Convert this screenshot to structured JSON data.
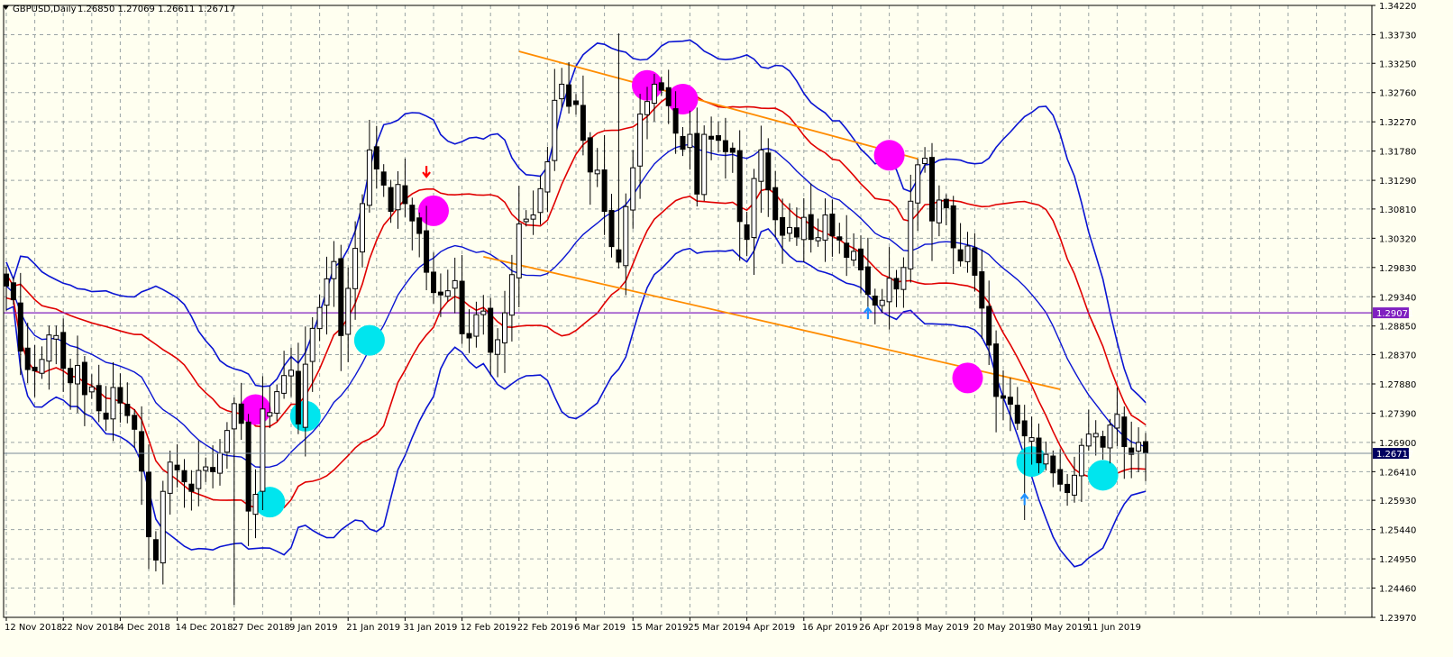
{
  "header": {
    "title": "GBPUSD,Daily",
    "ohlc": "1.26850 1.27069 1.26611 1.26717"
  },
  "price_labels": {
    "horizontal_line": "1.29071",
    "current_price": "1.26717"
  },
  "colors": {
    "background": "#fffff0",
    "grid": "#9aa4a4",
    "frame": "#000000",
    "bull_candle": "#ffffff",
    "bear_candle": "#000000",
    "bollinger_blue": "#0a14d2",
    "bollinger_red": "#e00000",
    "trendline": "#ff8c00",
    "horizontal_line": "#8020c0",
    "current_price_label": "#000060",
    "marker_magenta": "#ff00ff",
    "marker_cyan": "#00e5ee",
    "arrow_red": "#ff0000",
    "arrow_blue": "#1e90ff"
  },
  "chart_data": {
    "type": "candlestick",
    "symbol": "GBPUSD",
    "timeframe": "Daily",
    "ylim": [
      1.2397,
      1.3422
    ],
    "y_ticks": [
      "1.34220",
      "1.33730",
      "1.33250",
      "1.32760",
      "1.32270",
      "1.31780",
      "1.31290",
      "1.30810",
      "1.30320",
      "1.29830",
      "1.29340",
      "1.28850",
      "1.28370",
      "1.27880",
      "1.27390",
      "1.26900",
      "1.26410",
      "1.25930",
      "1.25440",
      "1.24950",
      "1.24460",
      "1.23970"
    ],
    "x_ticks": [
      "12 Nov 2018",
      "22 Nov 2018",
      "4 Dec 2018",
      "14 Dec 2018",
      "27 Dec 2018",
      "9 Jan 2019",
      "21 Jan 2019",
      "31 Jan 2019",
      "12 Feb 2019",
      "22 Feb 2019",
      "6 Mar 2019",
      "15 Mar 2019",
      "25 Mar 2019",
      "4 Apr 2019",
      "16 Apr 2019",
      "26 Apr 2019",
      "8 May 2019",
      "20 May 2019",
      "30 May 2019",
      "11 Jun 2019"
    ],
    "x_tick_index": [
      0,
      8,
      16,
      24,
      32,
      40,
      48,
      56,
      64,
      72,
      80,
      88,
      96,
      104,
      112,
      120,
      128,
      136,
      144,
      152
    ],
    "horizontal_line": 1.29071,
    "current_price": 1.26717,
    "closes": [
      1.2952,
      1.2929,
      1.2843,
      1.2812,
      1.281,
      1.2829,
      1.287,
      1.2869,
      1.2814,
      1.279,
      1.2819,
      1.277,
      1.2783,
      1.2743,
      1.2729,
      1.2782,
      1.2756,
      1.2735,
      1.2712,
      1.2642,
      1.2532,
      1.2493,
      1.2608,
      1.2657,
      1.2644,
      1.2624,
      1.2608,
      1.2643,
      1.2649,
      1.2641,
      1.2672,
      1.271,
      1.2755,
      1.2722,
      1.2575,
      1.2603,
      1.2746,
      1.274,
      1.2775,
      1.2802,
      1.2811,
      1.2721,
      1.2821,
      1.2881,
      1.2916,
      1.2964,
      1.2993,
      1.2869,
      1.2948,
      1.3015,
      1.309,
      1.318,
      1.3148,
      1.3121,
      1.3077,
      1.3122,
      1.309,
      1.3061,
      1.304,
      1.2975,
      1.2941,
      1.2937,
      1.2944,
      1.2961,
      1.2872,
      1.2865,
      1.2904,
      1.291,
      1.2841,
      1.2862,
      1.2907,
      1.2971,
      1.3056,
      1.3064,
      1.3071,
      1.3115,
      1.316,
      1.3263,
      1.329,
      1.3253,
      1.3256,
      1.3196,
      1.3143,
      1.3146,
      1.3077,
      1.3018,
      1.2992,
      1.3085,
      1.315,
      1.324,
      1.3261,
      1.329,
      1.328,
      1.3254,
      1.3208,
      1.3181,
      1.3206,
      1.3106,
      1.3206,
      1.3198,
      1.3196,
      1.3177,
      1.3176,
      1.306,
      1.303,
      1.3132,
      1.318,
      1.3113,
      1.3063,
      1.3037,
      1.305,
      1.3034,
      1.3067,
      1.303,
      1.3033,
      1.3071,
      1.3036,
      1.3029,
      1.3,
      1.301,
      1.2979,
      1.2938,
      1.292,
      1.2928,
      1.2965,
      1.2947,
      1.2983,
      1.3094,
      1.3155,
      1.3166,
      1.3061,
      1.3096,
      1.3083,
      1.3016,
      1.2994,
      1.3019,
      1.297,
      1.2915,
      1.2853,
      1.2767,
      1.2764,
      1.2754,
      1.2722,
      1.2701,
      1.2698,
      1.2656,
      1.267,
      1.2639,
      1.262,
      1.2606,
      1.2635,
      1.2685,
      1.2704,
      1.2705,
      1.2682,
      1.2719,
      1.2737,
      1.2683,
      1.267,
      1.269,
      1.2672
    ],
    "bollinger": {
      "middle_line": "red",
      "upper_and_lower_lines": [
        "blue",
        "red"
      ]
    },
    "trendlines": [
      {
        "from": [
          "20 Feb 2019",
          1.3345
        ],
        "to": [
          "9 May 2019",
          1.3165
        ]
      },
      {
        "from": [
          "13 Feb 2019",
          1.3001
        ],
        "to": [
          "6 Jun 2019",
          1.2779
        ]
      }
    ],
    "markers": [
      {
        "type": "magenta-circle",
        "date": "31 Dec 2018",
        "price": 1.2745
      },
      {
        "type": "magenta-circle",
        "date": "4 Feb 2019",
        "price": 1.3078
      },
      {
        "type": "magenta-circle",
        "date": "18 Mar 2019",
        "price": 1.3288
      },
      {
        "type": "magenta-circle",
        "date": "25 Mar 2019",
        "price": 1.3265
      },
      {
        "type": "magenta-circle",
        "date": "3 May 2019",
        "price": 1.3171
      },
      {
        "type": "magenta-circle",
        "date": "20 May 2019",
        "price": 1.2798
      },
      {
        "type": "cyan-circle",
        "date": "2 Jan 2019",
        "price": 1.259
      },
      {
        "type": "cyan-circle",
        "date": "9 Jan 2019",
        "price": 1.2734
      },
      {
        "type": "cyan-circle",
        "date": "22 Jan 2019",
        "price": 1.2861
      },
      {
        "type": "cyan-circle",
        "date": "31 May 2019",
        "price": 1.2658
      },
      {
        "type": "cyan-circle",
        "date": "14 Jun 2019",
        "price": 1.2635
      },
      {
        "type": "red-arrow-down",
        "date": "1 Feb 2019",
        "price": 1.3135
      },
      {
        "type": "blue-arrow-up",
        "date": "30 Apr 2019",
        "price": 1.2915
      },
      {
        "type": "blue-arrow-up",
        "date": "30 May 2019",
        "price": 1.2603
      }
    ]
  }
}
